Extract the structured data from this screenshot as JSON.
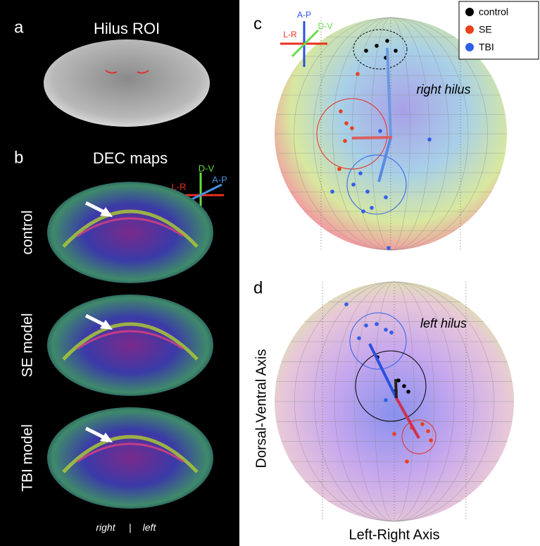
{
  "panel_a": {
    "label": "a",
    "title": "Hilus ROI"
  },
  "panel_b": {
    "label": "b",
    "title": "DEC maps",
    "axes": [
      "D-V",
      "L-R",
      "A-P"
    ],
    "rows": [
      "control",
      "SE model",
      "TBI model"
    ],
    "footer": [
      "right",
      "|",
      "left"
    ]
  },
  "panel_c": {
    "label": "c",
    "axes": [
      "A-P",
      "L-R",
      "D-V"
    ],
    "legend": [
      {
        "name": "control",
        "color": "#000000"
      },
      {
        "name": "SE",
        "color": "#e8401c"
      },
      {
        "name": "TBI",
        "color": "#2f5ee8"
      }
    ],
    "annotation": "right hilus"
  },
  "panel_d": {
    "label": "d",
    "annotation": "left hilus",
    "y_axis_label": "Dorsal-Ventral Axis",
    "x_axis_label": "Left-Right Axis"
  }
}
